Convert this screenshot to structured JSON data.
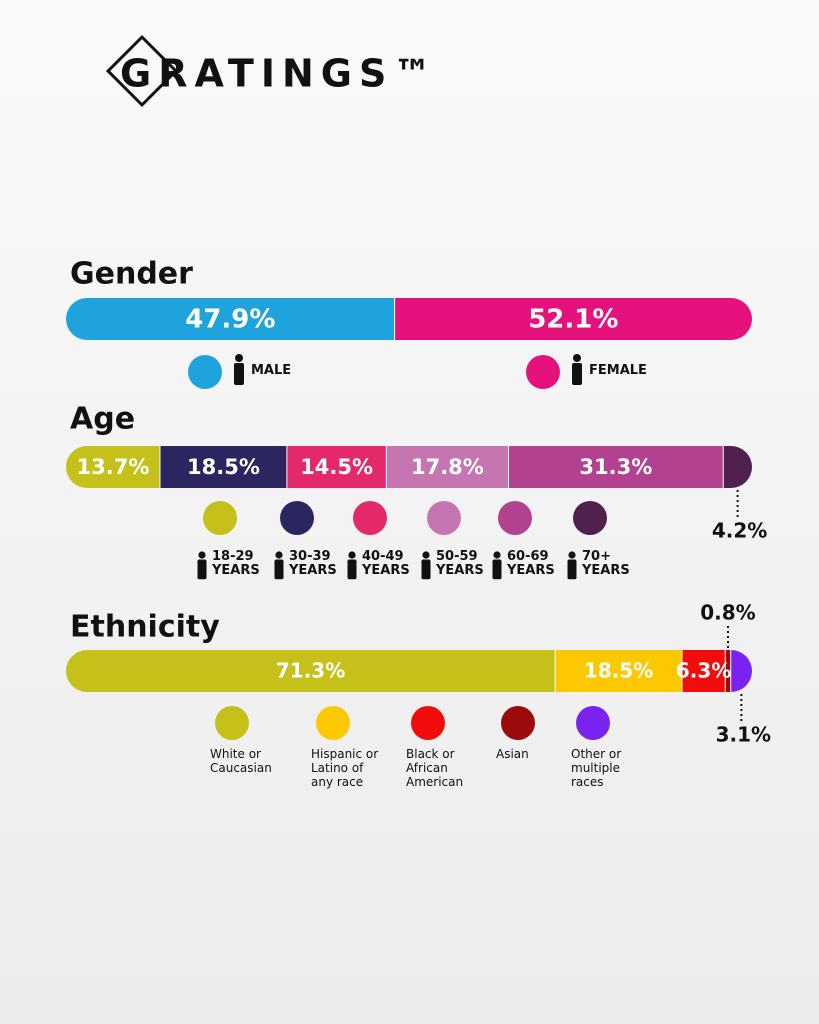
{
  "logo": "GRATINGS™",
  "chart_data": [
    {
      "type": "stacked-bar",
      "title": "Gender",
      "xlim": [
        0,
        100
      ],
      "series": [
        {
          "name": "MALE",
          "color": "#1fa3dc",
          "values": [
            47.9
          ],
          "value_labels": [
            "47.9%"
          ]
        },
        {
          "name": "FEMALE",
          "color": "#e5127e",
          "values": [
            52.1
          ],
          "value_labels": [
            "52.1%"
          ]
        }
      ]
    },
    {
      "type": "stacked-bar",
      "title": "Age",
      "xlim": [
        0,
        100
      ],
      "series": [
        {
          "name": "18-29 YEARS",
          "color": "#c5c01a",
          "values": [
            13.7
          ],
          "value_labels": [
            "13.7%"
          ]
        },
        {
          "name": "30-39 YEARS",
          "color": "#2b2660",
          "values": [
            18.5
          ],
          "value_labels": [
            "18.5%"
          ]
        },
        {
          "name": "40-49 YEARS",
          "color": "#e4296b",
          "values": [
            14.5
          ],
          "value_labels": [
            "14.5%"
          ]
        },
        {
          "name": "50-59 YEARS",
          "color": "#c576b0",
          "values": [
            17.8
          ],
          "value_labels": [
            "17.8%"
          ]
        },
        {
          "name": "60-69 YEARS",
          "color": "#b2418f",
          "values": [
            31.3
          ],
          "value_labels": [
            "31.3%"
          ]
        },
        {
          "name": "70+ YEARS",
          "color": "#50204f",
          "values": [
            4.2
          ],
          "value_labels": [
            "4.2%"
          ]
        }
      ]
    },
    {
      "type": "stacked-bar",
      "title": "Ethnicity",
      "xlim": [
        0,
        100
      ],
      "series": [
        {
          "name": "White or Caucasian",
          "color": "#c5c01a",
          "values": [
            71.3
          ],
          "value_labels": [
            "71.3%"
          ]
        },
        {
          "name": "Hispanic or Latino of any race",
          "color": "#fcc900",
          "values": [
            18.5
          ],
          "value_labels": [
            "18.5%"
          ]
        },
        {
          "name": "Black or African American",
          "color": "#f20d0d",
          "values": [
            6.3
          ],
          "value_labels": [
            "6.3%"
          ]
        },
        {
          "name": "Asian",
          "color": "#9c0b0b",
          "values": [
            0.8
          ],
          "value_labels": [
            "0.8%"
          ]
        },
        {
          "name": "Other or multiple races",
          "color": "#7a22f0",
          "values": [
            3.1
          ],
          "value_labels": [
            "3.1%"
          ]
        }
      ]
    }
  ]
}
